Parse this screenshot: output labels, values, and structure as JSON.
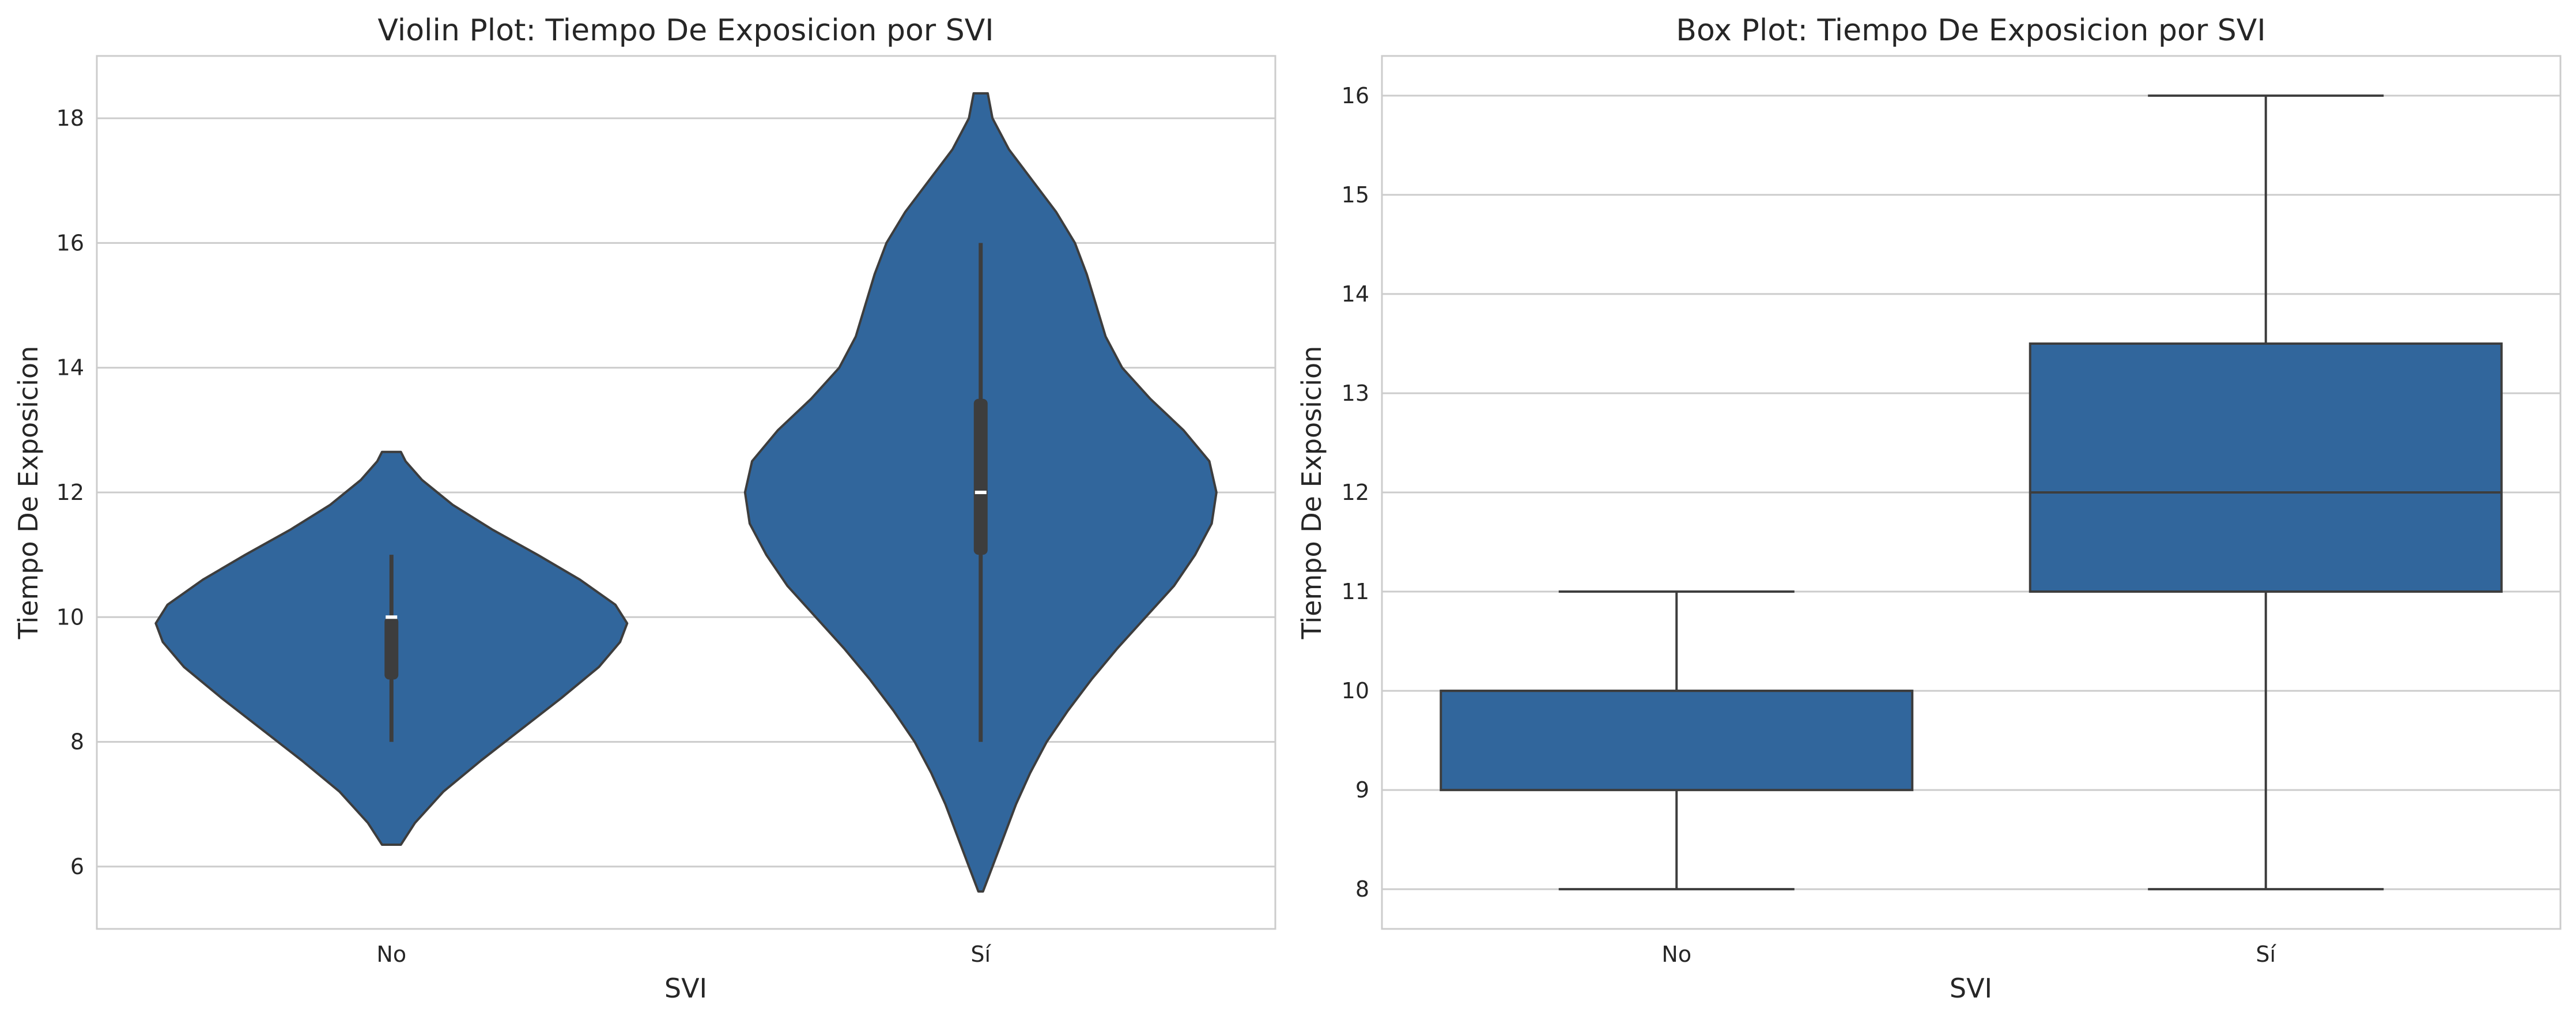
{
  "colors": {
    "fill": "#31669c",
    "edge": "#3d3d3d",
    "grid": "#cccccc",
    "inner": "#3d3d3d",
    "median_dot": "#ffffff"
  },
  "chart_data": [
    {
      "type": "violin",
      "title": "Violin Plot: Tiempo De Exposicion por SVI",
      "xlabel": "SVI",
      "ylabel": "Tiempo De Exposicion",
      "categories": [
        "No",
        "Sí"
      ],
      "ylim": [
        5,
        19
      ],
      "yticks": [
        6,
        8,
        10,
        12,
        14,
        16,
        18
      ],
      "grid": true,
      "violins": [
        {
          "category": "No",
          "range": [
            6.35,
            12.65
          ],
          "median": 10,
          "q1": 9,
          "q3": 10,
          "whisker_low": 8,
          "whisker_high": 11,
          "density_profile": [
            [
              6.35,
              0.04
            ],
            [
              6.7,
              0.1
            ],
            [
              7.2,
              0.22
            ],
            [
              7.7,
              0.38
            ],
            [
              8.2,
              0.55
            ],
            [
              8.7,
              0.72
            ],
            [
              9.2,
              0.88
            ],
            [
              9.6,
              0.97
            ],
            [
              9.9,
              1.0
            ],
            [
              10.2,
              0.95
            ],
            [
              10.6,
              0.8
            ],
            [
              11.0,
              0.62
            ],
            [
              11.4,
              0.43
            ],
            [
              11.8,
              0.26
            ],
            [
              12.2,
              0.13
            ],
            [
              12.5,
              0.06
            ],
            [
              12.65,
              0.04
            ]
          ]
        },
        {
          "category": "Sí",
          "range": [
            5.6,
            18.4
          ],
          "median": 12,
          "q1": 11,
          "q3": 13.5,
          "whisker_low": 8,
          "whisker_high": 16,
          "density_profile": [
            [
              5.6,
              0.01
            ],
            [
              6.0,
              0.05
            ],
            [
              6.5,
              0.1
            ],
            [
              7.0,
              0.15
            ],
            [
              7.5,
              0.21
            ],
            [
              8.0,
              0.28
            ],
            [
              8.5,
              0.37
            ],
            [
              9.0,
              0.47
            ],
            [
              9.5,
              0.58
            ],
            [
              10.0,
              0.7
            ],
            [
              10.5,
              0.82
            ],
            [
              11.0,
              0.91
            ],
            [
              11.5,
              0.98
            ],
            [
              12.0,
              1.0
            ],
            [
              12.5,
              0.97
            ],
            [
              13.0,
              0.86
            ],
            [
              13.5,
              0.72
            ],
            [
              14.0,
              0.6
            ],
            [
              14.5,
              0.53
            ],
            [
              15.0,
              0.49
            ],
            [
              15.5,
              0.45
            ],
            [
              16.0,
              0.4
            ],
            [
              16.5,
              0.32
            ],
            [
              17.0,
              0.22
            ],
            [
              17.5,
              0.12
            ],
            [
              18.0,
              0.05
            ],
            [
              18.4,
              0.03
            ]
          ]
        }
      ]
    },
    {
      "type": "box",
      "title": "Box Plot: Tiempo De Exposicion por SVI",
      "xlabel": "SVI",
      "ylabel": "Tiempo De Exposicion",
      "categories": [
        "No",
        "Sí"
      ],
      "ylim": [
        7.6,
        16.4
      ],
      "yticks": [
        8,
        9,
        10,
        11,
        12,
        13,
        14,
        15,
        16
      ],
      "grid": true,
      "boxes": [
        {
          "category": "No",
          "whisker_low": 8,
          "q1": 9,
          "median": 10,
          "q3": 10,
          "whisker_high": 11
        },
        {
          "category": "Sí",
          "whisker_low": 8,
          "q1": 11,
          "median": 12,
          "q3": 13.5,
          "whisker_high": 16
        }
      ]
    }
  ]
}
